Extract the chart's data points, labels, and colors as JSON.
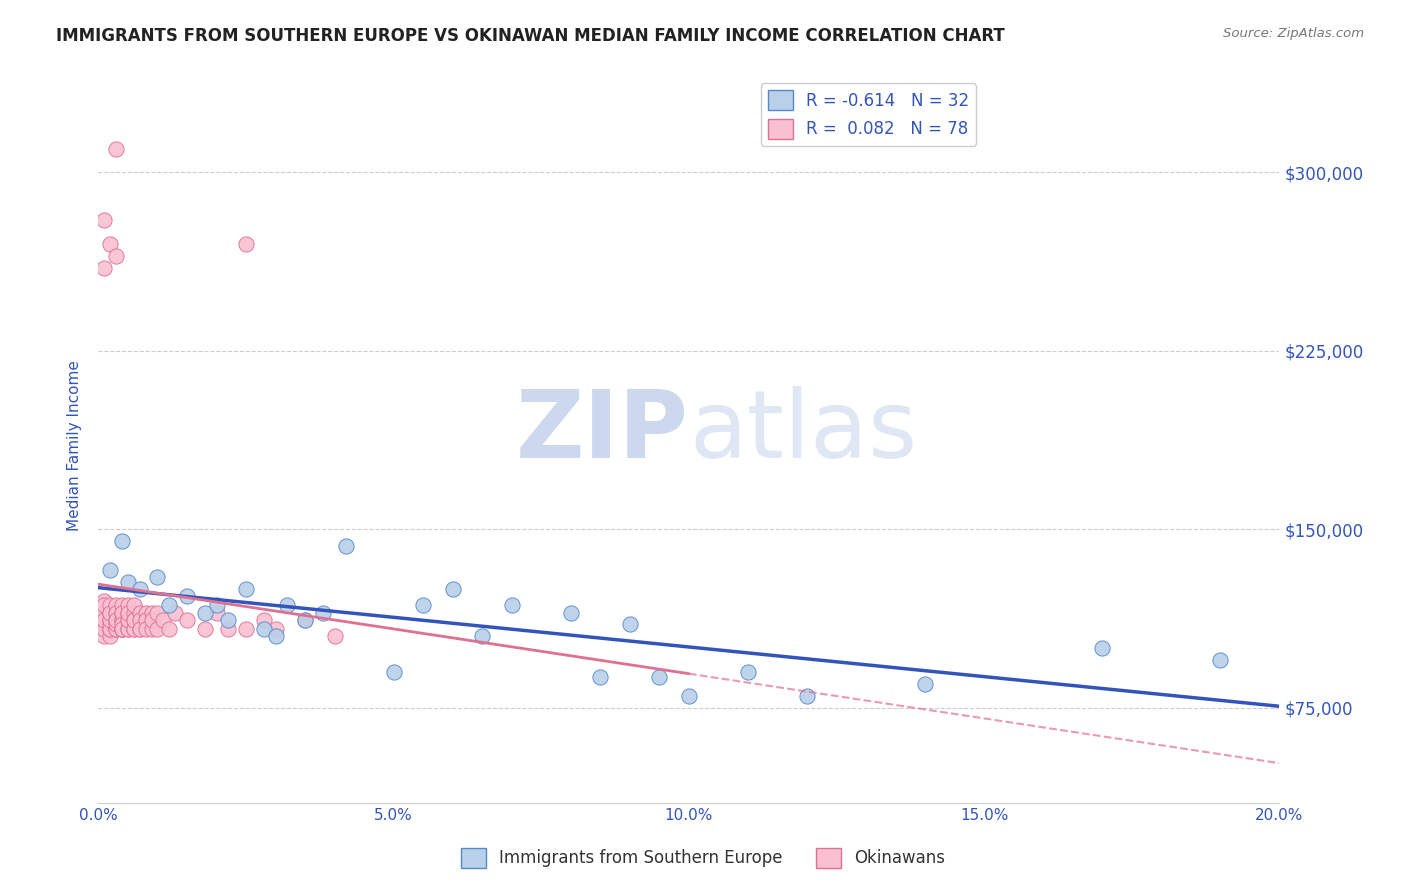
{
  "title": "IMMIGRANTS FROM SOUTHERN EUROPE VS OKINAWAN MEDIAN FAMILY INCOME CORRELATION CHART",
  "source": "Source: ZipAtlas.com",
  "ylabel": "Median Family Income",
  "xlim": [
    0.0,
    0.2
  ],
  "ylim": [
    35000,
    335000
  ],
  "yticks": [
    75000,
    150000,
    225000,
    300000
  ],
  "ytick_labels": [
    "$75,000",
    "$150,000",
    "$225,000",
    "$300,000"
  ],
  "xticks": [
    0.0,
    0.05,
    0.1,
    0.15,
    0.2
  ],
  "xtick_labels": [
    "0.0%",
    "5.0%",
    "10.0%",
    "15.0%",
    "20.0%"
  ],
  "blue_scatter_x": [
    0.002,
    0.004,
    0.005,
    0.007,
    0.01,
    0.012,
    0.015,
    0.018,
    0.02,
    0.022,
    0.025,
    0.028,
    0.03,
    0.032,
    0.035,
    0.038,
    0.042,
    0.05,
    0.055,
    0.06,
    0.065,
    0.07,
    0.08,
    0.085,
    0.09,
    0.095,
    0.1,
    0.11,
    0.12,
    0.14,
    0.17,
    0.19
  ],
  "blue_scatter_y": [
    133000,
    145000,
    128000,
    125000,
    130000,
    118000,
    122000,
    115000,
    118000,
    112000,
    125000,
    108000,
    105000,
    118000,
    112000,
    115000,
    143000,
    90000,
    118000,
    125000,
    105000,
    118000,
    115000,
    88000,
    110000,
    88000,
    80000,
    90000,
    80000,
    85000,
    100000,
    95000
  ],
  "pink_scatter_x": [
    0.001,
    0.001,
    0.001,
    0.001,
    0.001,
    0.001,
    0.001,
    0.001,
    0.001,
    0.001,
    0.002,
    0.002,
    0.002,
    0.002,
    0.002,
    0.002,
    0.002,
    0.002,
    0.002,
    0.002,
    0.003,
    0.003,
    0.003,
    0.003,
    0.003,
    0.003,
    0.003,
    0.003,
    0.003,
    0.003,
    0.004,
    0.004,
    0.004,
    0.004,
    0.004,
    0.004,
    0.004,
    0.004,
    0.004,
    0.004,
    0.005,
    0.005,
    0.005,
    0.005,
    0.005,
    0.005,
    0.005,
    0.006,
    0.006,
    0.006,
    0.006,
    0.006,
    0.006,
    0.007,
    0.007,
    0.007,
    0.007,
    0.008,
    0.008,
    0.008,
    0.009,
    0.009,
    0.009,
    0.01,
    0.01,
    0.011,
    0.012,
    0.013,
    0.015,
    0.018,
    0.02,
    0.022,
    0.025,
    0.028,
    0.03,
    0.035,
    0.04,
    0.025
  ],
  "pink_scatter_y": [
    108000,
    120000,
    260000,
    110000,
    115000,
    105000,
    108000,
    112000,
    118000,
    280000,
    105000,
    270000,
    112000,
    108000,
    115000,
    110000,
    118000,
    108000,
    112000,
    115000,
    310000,
    108000,
    265000,
    112000,
    115000,
    108000,
    118000,
    110000,
    115000,
    112000,
    108000,
    115000,
    112000,
    108000,
    118000,
    112000,
    108000,
    115000,
    110000,
    108000,
    112000,
    108000,
    115000,
    118000,
    108000,
    112000,
    115000,
    115000,
    108000,
    112000,
    108000,
    118000,
    112000,
    108000,
    115000,
    112000,
    108000,
    115000,
    112000,
    108000,
    115000,
    108000,
    112000,
    115000,
    108000,
    112000,
    108000,
    115000,
    112000,
    108000,
    115000,
    108000,
    108000,
    112000,
    108000,
    112000,
    105000,
    270000
  ],
  "blue_R": -0.614,
  "blue_N": 32,
  "pink_R": 0.082,
  "pink_N": 78,
  "blue_color": "#b8d0e8",
  "blue_edge_color": "#5588cc",
  "pink_color": "#f8c0d0",
  "pink_edge_color": "#e07090",
  "blue_line_color": "#3355bb",
  "pink_line_color": "#e07090",
  "watermark_zip": "ZIP",
  "watermark_atlas": "atlas",
  "watermark_color": "#ccd8ee",
  "title_color": "#222222",
  "tick_label_color": "#3355bb",
  "legend_color": "#3355bb",
  "background_color": "#ffffff",
  "grid_color": "#cccccc",
  "source_color": "#777777"
}
